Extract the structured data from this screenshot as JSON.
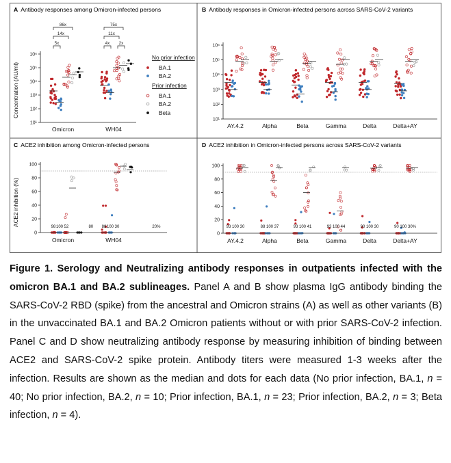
{
  "colors": {
    "ba1": "#c0282c",
    "ba2": "#3f7fbf",
    "beta": "#111111",
    "prior_ba2": "#9a9a9a",
    "grid": "#9a9a9a"
  },
  "panels": {
    "A": {
      "letter": "A",
      "title": "Antibody responses among Omicron-infected persons",
      "ylabel": "Concentration (AU/ml)",
      "categories": [
        "Omicron",
        "WH04"
      ],
      "fold_labels": [
        "86x",
        "14x",
        "5x",
        "75x",
        "11x",
        "4x",
        "2x"
      ]
    },
    "B": {
      "letter": "B",
      "title": "Antibody responses in Omicron-infected persons across SARS-CoV-2 variants",
      "categories": [
        "AY.4.2",
        "Alpha",
        "Beta",
        "Gamma",
        "Delta",
        "Delta+AY"
      ]
    },
    "C": {
      "letter": "C",
      "title": "ACE2 inhibition among Omicron-infected persons",
      "ylabel": "ACE2 inhibition (%)",
      "categories": [
        "Omicron",
        "WH04"
      ],
      "counts": [
        [
          "98",
          "100",
          "52",
          "",
          "80"
        ],
        [
          "88",
          "100",
          "30",
          "",
          "20%"
        ]
      ]
    },
    "D": {
      "letter": "D",
      "title": "ACE2 inhibition in Omicron-infected persons across SARS-CoV-2 variants",
      "categories": [
        "AY.4.2",
        "Alpha",
        "Beta",
        "Gamma",
        "Delta",
        "Delta+AY"
      ],
      "counts": [
        "93 100 30",
        "88 100 37",
        "93 100 41",
        "93 100 44",
        "90 100 30",
        "90 100 30%"
      ]
    }
  },
  "legend": {
    "heading1": "No prior infection",
    "heading2": "Prior infection",
    "items": [
      "BA.1",
      "BA.2",
      "BA.1",
      "BA.2",
      "Beta"
    ]
  },
  "axes": {
    "log_ticks": [
      "10⁶",
      "10⁵",
      "10⁴",
      "10³",
      "10²",
      "10¹"
    ],
    "pct_ticks": [
      "100",
      "80",
      "60",
      "40",
      "20",
      "0"
    ]
  },
  "chart_data": [
    {
      "type": "scatter",
      "panel": "A",
      "title": "Antibody responses among Omicron-infected persons",
      "ylabel": "Concentration (AU/ml)",
      "yscale": "log",
      "ylim": [
        10,
        1000000
      ],
      "categories": [
        "Omicron",
        "WH04"
      ],
      "series": [
        {
          "name": "BA.1",
          "median": [
            2000,
            5000
          ]
        },
        {
          "name": "BA.2",
          "median": [
            300,
            1500
          ]
        },
        {
          "name": "BA.1",
          "median": [
            20000,
            100000
          ]
        },
        {
          "name": "BA.2",
          "median": [
            30000,
            150000
          ]
        },
        {
          "name": "Beta",
          "median": [
            50000,
            200000
          ]
        }
      ]
    },
    {
      "type": "scatter",
      "panel": "B",
      "title": "Antibody responses in Omicron-infected persons across SARS-CoV-2 variants",
      "yscale": "log",
      "ylim": [
        10,
        1000000
      ],
      "categories": [
        "AY.4.2",
        "Alpha",
        "Beta",
        "Gamma",
        "Delta",
        "Delta+AY"
      ],
      "series": [
        {
          "median": [
            3000,
            3000,
            2000,
            3000,
            3000,
            2500
          ]
        },
        {
          "median": [
            1000,
            1000,
            500,
            700,
            1000,
            800
          ]
        },
        {
          "median": [
            80000,
            80000,
            60000,
            50000,
            80000,
            80000
          ]
        },
        {
          "median": [
            100000,
            100000,
            80000,
            100000,
            100000,
            100000
          ]
        }
      ]
    },
    {
      "type": "scatter",
      "panel": "C",
      "title": "ACE2 inhibition among Omicron-infected persons",
      "ylabel": "ACE2 inhibition (%)",
      "ylim": [
        0,
        100
      ],
      "categories": [
        "Omicron",
        "WH04"
      ],
      "threshold": 90,
      "series": [
        {
          "name": "BA.1",
          "median": [
            0,
            0
          ]
        },
        {
          "name": "BA.2",
          "median": [
            0,
            0
          ]
        },
        {
          "name": "BA.1",
          "median": [
            0,
            88
          ]
        },
        {
          "name": "BA.2",
          "median": [
            65,
            97
          ]
        },
        {
          "name": "Beta",
          "median": [
            0,
            92
          ]
        }
      ]
    },
    {
      "type": "scatter",
      "panel": "D",
      "title": "ACE2 inhibition in Omicron-infected persons across SARS-CoV-2 variants",
      "ylim": [
        0,
        100
      ],
      "categories": [
        "AY.4.2",
        "Alpha",
        "Beta",
        "Gamma",
        "Delta",
        "Delta+AY"
      ],
      "threshold": 90,
      "series": [
        {
          "median": [
            0,
            0,
            0,
            0,
            0,
            0
          ]
        },
        {
          "median": [
            0,
            0,
            0,
            0,
            0,
            0
          ]
        },
        {
          "median": [
            96,
            78,
            60,
            33,
            96,
            96
          ]
        },
        {
          "median": [
            97,
            97,
            97,
            97,
            97,
            97
          ]
        }
      ]
    }
  ],
  "caption": {
    "bold": "Figure 1. Serology and Neutralizing antibody responses in outpatients infected with the omicron BA.1 and BA.2 sublineages.",
    "text1": " Panel A and B show plasma IgG antibody binding the SARS-CoV-2 RBD (spike) from the ancestral and Omicron strains (A) as well as other variants (B) in the unvaccinated BA.1 and BA.2 Omicron patients without or with prior SARS-CoV-2 infection. Panel C and D show neutralizing antibody response by measuring inhibition of binding between ACE2 and SARS-CoV-2 spike protein. Antibody titers were measured 1-3 weeks after the infection. Results are shown as the median and dots for each data (No prior infection, BA.1, ",
    "n1": "n",
    "text2": " = 40; No prior infection, BA.2, ",
    "n2": "n",
    "text3": " = 10; Prior infection, BA.1, ",
    "n3": "n",
    "text4": " = 23; Prior infection, BA.2, ",
    "n4": "n",
    "text5": " = 3; Beta infection, ",
    "n5": "n",
    "text6": " = 4)."
  }
}
